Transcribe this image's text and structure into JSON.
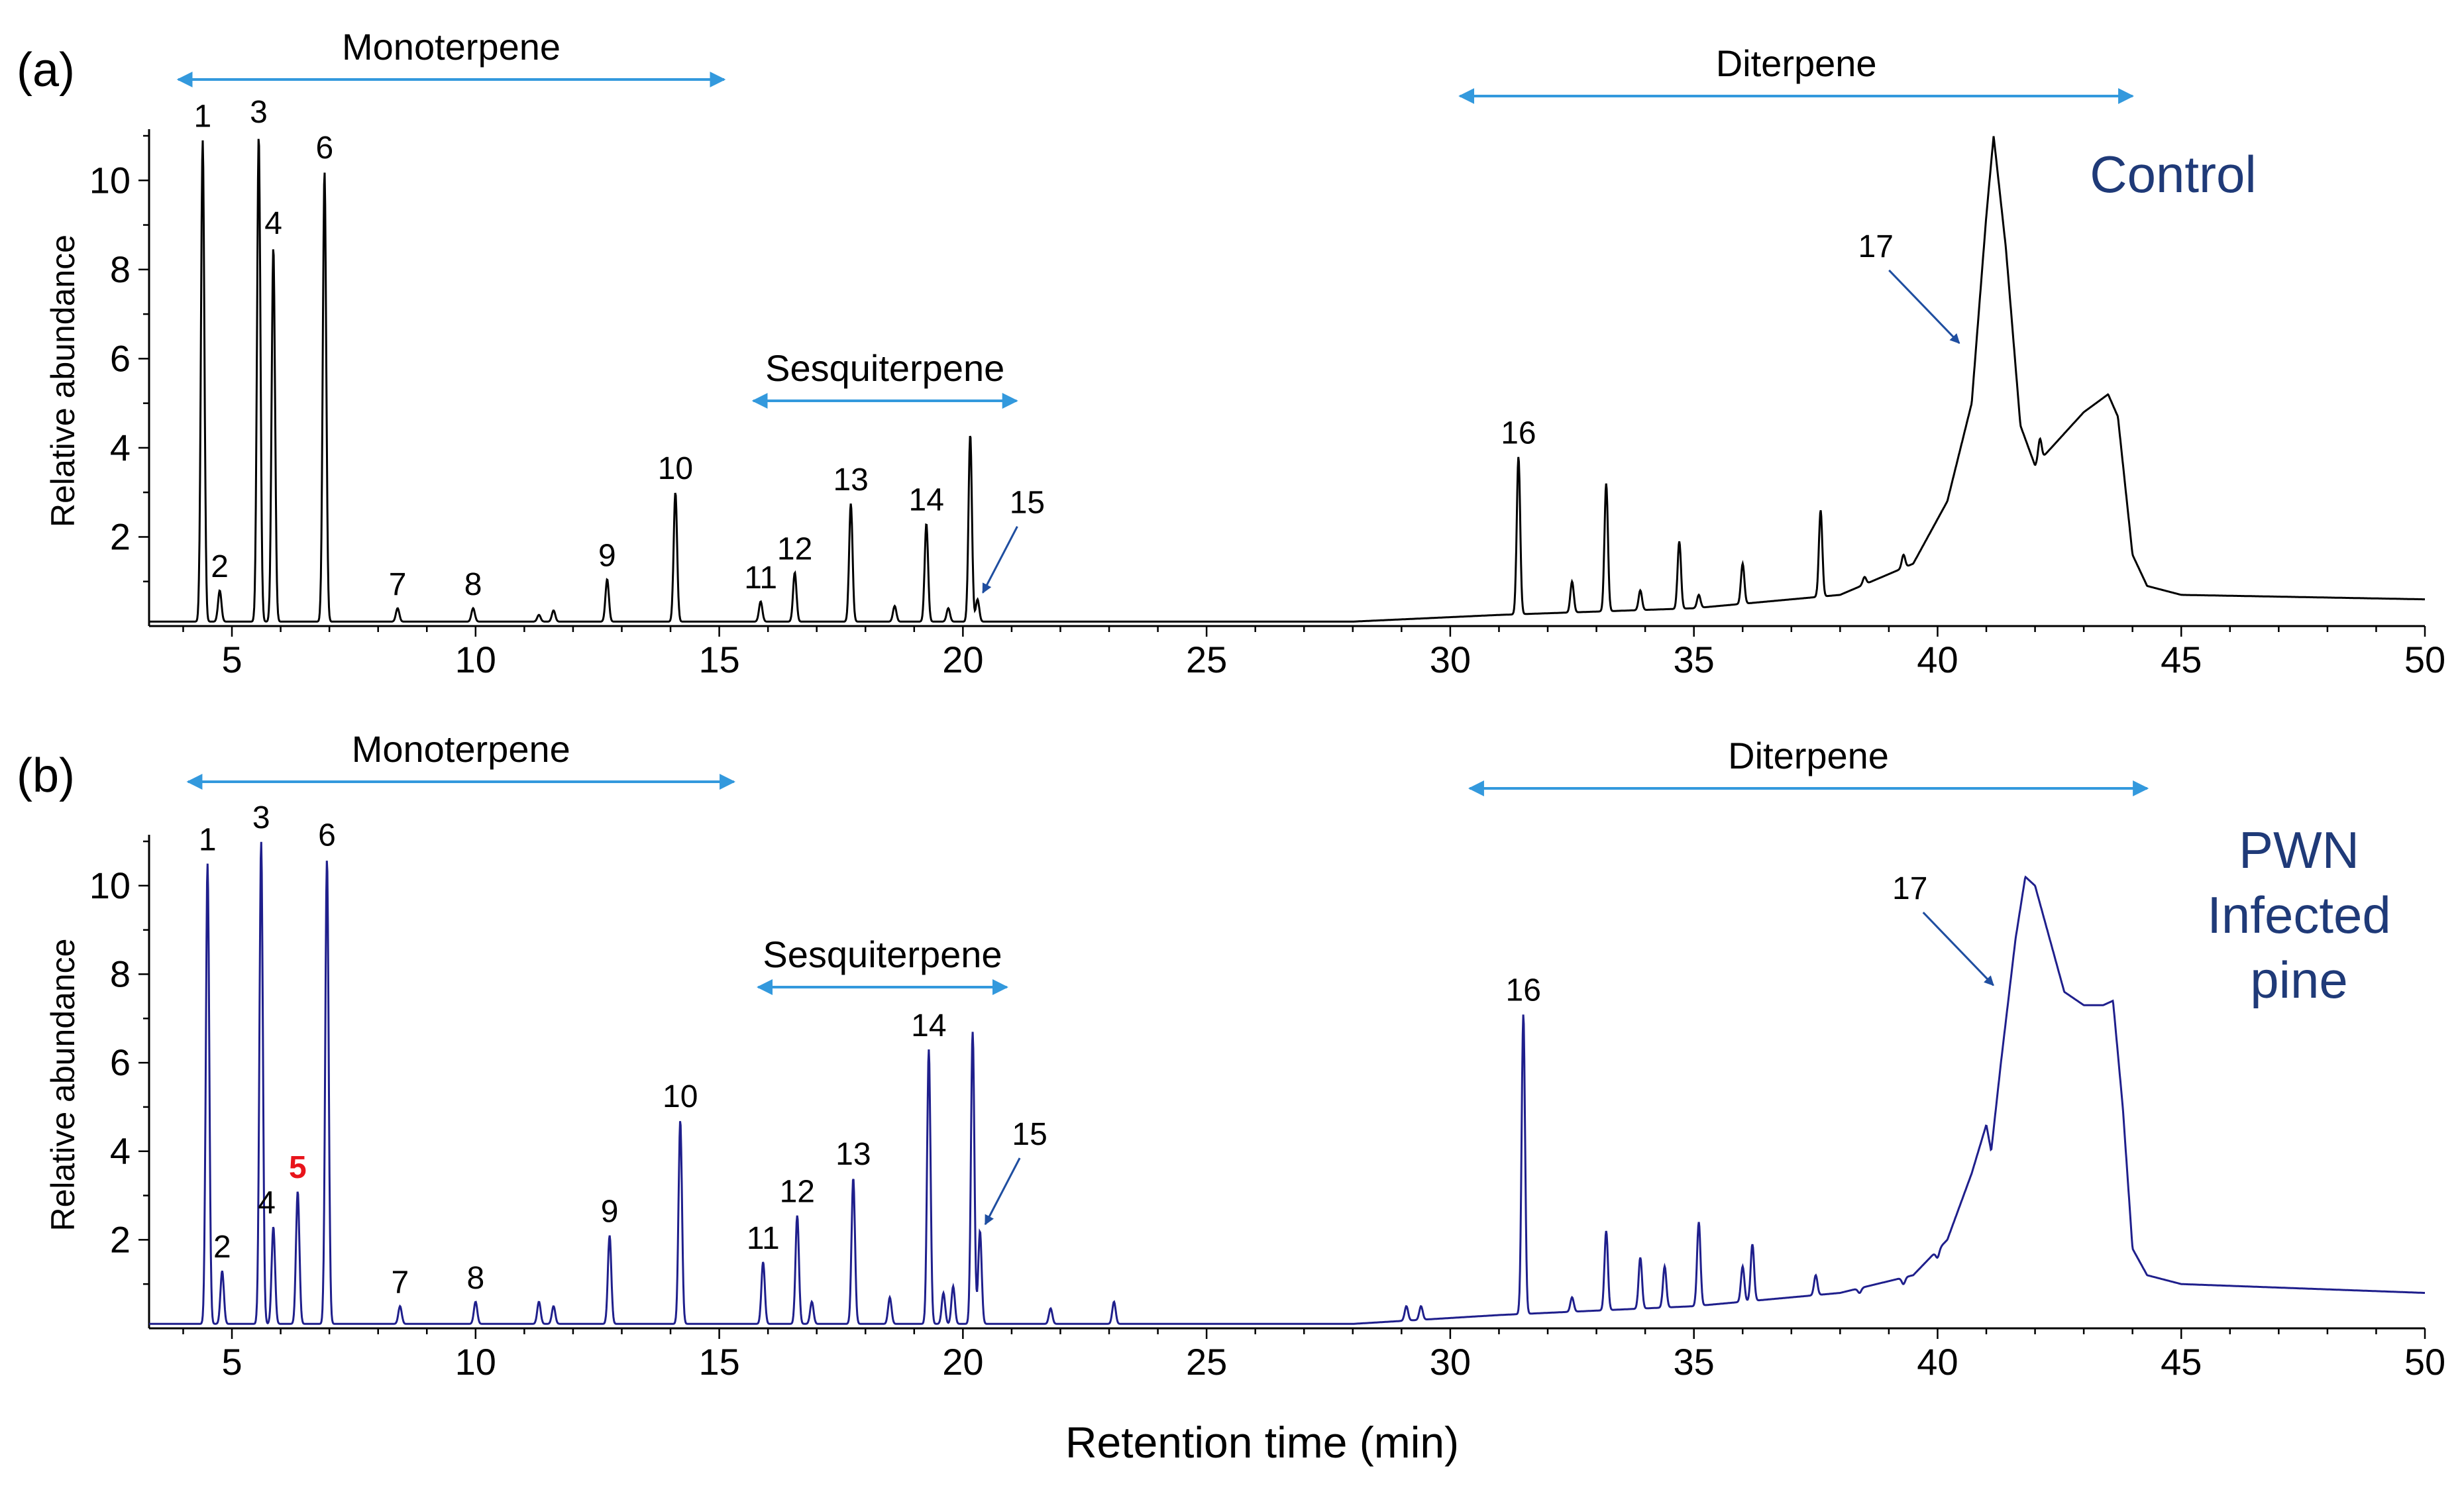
{
  "figure": {
    "xlabel": "Retention time (min)",
    "colors": {
      "control": "#000000",
      "infected": "#1f1f8c",
      "region_arrow": "#3399dd",
      "pointer_arrow": "#1f4ea0",
      "highlight": "#e8141b",
      "sample_text": "#1f3a78"
    }
  },
  "chart_data": [
    {
      "type": "line",
      "panel": "(a)",
      "sample_label": [
        "Control"
      ],
      "xlabel": "Retention time (min)",
      "ylabel": "Relative abundance",
      "xlim": [
        3.3,
        50
      ],
      "ylim": [
        0,
        11
      ],
      "xticks": [
        5,
        10,
        15,
        20,
        25,
        30,
        35,
        40,
        45,
        50
      ],
      "yticks": [
        2,
        4,
        6,
        8,
        10
      ],
      "baseline": [
        [
          3.3,
          0.1
        ],
        [
          28,
          0.1
        ],
        [
          31,
          0.25
        ],
        [
          35,
          0.4
        ],
        [
          38,
          0.7
        ],
        [
          39.5,
          1.4
        ],
        [
          40.2,
          2.8
        ],
        [
          40.7,
          5.0
        ],
        [
          41.0,
          9.2
        ],
        [
          41.15,
          11.0
        ],
        [
          41.4,
          8.5
        ],
        [
          41.7,
          4.5
        ],
        [
          42.0,
          3.6
        ],
        [
          42.5,
          4.2
        ],
        [
          43.0,
          4.8
        ],
        [
          43.5,
          5.2
        ],
        [
          43.7,
          4.7
        ],
        [
          44.0,
          1.6
        ],
        [
          44.3,
          0.9
        ],
        [
          45,
          0.7
        ],
        [
          50,
          0.6
        ]
      ],
      "peaks": [
        {
          "label": "1",
          "x": 4.4,
          "y": 10.9
        },
        {
          "label": "2",
          "x": 4.75,
          "y": 0.8
        },
        {
          "label": "3",
          "x": 5.55,
          "y": 11.0
        },
        {
          "label": "4",
          "x": 5.85,
          "y": 8.5
        },
        {
          "label": "6",
          "x": 6.9,
          "y": 10.2
        },
        {
          "label": "7",
          "x": 8.4,
          "y": 0.4
        },
        {
          "label": "8",
          "x": 9.95,
          "y": 0.4
        },
        {
          "label": "9",
          "x": 12.7,
          "y": 1.05
        },
        {
          "label": "10",
          "x": 14.1,
          "y": 3.0
        },
        {
          "label": "11",
          "x": 15.85,
          "y": 0.55
        },
        {
          "label": "12",
          "x": 16.55,
          "y": 1.2
        },
        {
          "label": "13",
          "x": 17.7,
          "y": 2.75
        },
        {
          "label": "14",
          "x": 19.25,
          "y": 2.3
        },
        {
          "label": "15",
          "x": 20.3,
          "y": 0.6
        },
        {
          "label": "16",
          "x": 31.4,
          "y": 3.8
        },
        {
          "label": "",
          "x": 20.15,
          "y": 4.3
        },
        {
          "label": "",
          "x": 33.2,
          "y": 3.2
        },
        {
          "label": "",
          "x": 34.7,
          "y": 1.9
        },
        {
          "label": "",
          "x": 36.0,
          "y": 1.4
        },
        {
          "label": "",
          "x": 37.6,
          "y": 2.6
        },
        {
          "label": "",
          "x": 32.5,
          "y": 1.0
        },
        {
          "label": "",
          "x": 33.9,
          "y": 0.8
        },
        {
          "label": "",
          "x": 35.1,
          "y": 0.7
        },
        {
          "label": "",
          "x": 38.5,
          "y": 1.1
        },
        {
          "label": "",
          "x": 39.3,
          "y": 1.6
        },
        {
          "label": "",
          "x": 42.1,
          "y": 4.2
        },
        {
          "label": "",
          "x": 11.3,
          "y": 0.25
        },
        {
          "label": "",
          "x": 11.6,
          "y": 0.35
        },
        {
          "label": "",
          "x": 18.6,
          "y": 0.45
        },
        {
          "label": "",
          "x": 19.7,
          "y": 0.4
        }
      ],
      "regions": [
        {
          "name": "Monoterpene",
          "from": 3.9,
          "to": 15.1
        },
        {
          "name": "Sesquiterpene",
          "from": 15.7,
          "to": 21.1
        },
        {
          "name": "Diterpene",
          "from": 30.2,
          "to": 44.0
        }
      ],
      "annotations": [
        {
          "label": "15",
          "x": 20.3,
          "y": 0.6
        },
        {
          "label": "17",
          "x": 40.5,
          "y": 6.2
        }
      ]
    },
    {
      "type": "line",
      "panel": "(b)",
      "sample_label": [
        "PWN",
        "Infected",
        "pine"
      ],
      "xlabel": "Retention time (min)",
      "ylabel": "Relative abundance",
      "xlim": [
        3.3,
        50
      ],
      "ylim": [
        0,
        11
      ],
      "xticks": [
        5,
        10,
        15,
        20,
        25,
        30,
        35,
        40,
        45,
        50
      ],
      "yticks": [
        2,
        4,
        6,
        8,
        10
      ],
      "baseline": [
        [
          3.3,
          0.1
        ],
        [
          28,
          0.1
        ],
        [
          31,
          0.3
        ],
        [
          35,
          0.5
        ],
        [
          38,
          0.8
        ],
        [
          39.5,
          1.2
        ],
        [
          40.2,
          2.0
        ],
        [
          40.7,
          3.5
        ],
        [
          41.0,
          4.6
        ],
        [
          41.1,
          4.0
        ],
        [
          41.3,
          6.0
        ],
        [
          41.6,
          8.8
        ],
        [
          41.8,
          10.2
        ],
        [
          42.0,
          10.0
        ],
        [
          42.3,
          8.8
        ],
        [
          42.6,
          7.6
        ],
        [
          43.0,
          7.3
        ],
        [
          43.4,
          7.3
        ],
        [
          43.6,
          7.4
        ],
        [
          43.8,
          5.0
        ],
        [
          44.0,
          1.8
        ],
        [
          44.3,
          1.2
        ],
        [
          45,
          1.0
        ],
        [
          50,
          0.8
        ]
      ],
      "peaks": [
        {
          "label": "1",
          "x": 4.5,
          "y": 10.5
        },
        {
          "label": "2",
          "x": 4.8,
          "y": 1.3
        },
        {
          "label": "3",
          "x": 5.6,
          "y": 11.0
        },
        {
          "label": "4",
          "x": 5.85,
          "y": 2.3
        },
        {
          "label": "5",
          "x": 6.35,
          "y": 3.1
        },
        {
          "label": "6",
          "x": 6.95,
          "y": 10.6
        },
        {
          "label": "7",
          "x": 8.45,
          "y": 0.5
        },
        {
          "label": "8",
          "x": 10.0,
          "y": 0.6
        },
        {
          "label": "9",
          "x": 12.75,
          "y": 2.1
        },
        {
          "label": "10",
          "x": 14.2,
          "y": 4.7
        },
        {
          "label": "11",
          "x": 15.9,
          "y": 1.5
        },
        {
          "label": "12",
          "x": 16.6,
          "y": 2.55
        },
        {
          "label": "13",
          "x": 17.75,
          "y": 3.4
        },
        {
          "label": "14",
          "x": 19.3,
          "y": 6.3
        },
        {
          "label": "15",
          "x": 20.35,
          "y": 2.2
        },
        {
          "label": "16",
          "x": 31.5,
          "y": 7.1
        },
        {
          "label": "",
          "x": 20.2,
          "y": 6.7
        },
        {
          "label": "",
          "x": 33.2,
          "y": 2.2
        },
        {
          "label": "",
          "x": 33.9,
          "y": 1.6
        },
        {
          "label": "",
          "x": 34.4,
          "y": 1.4
        },
        {
          "label": "",
          "x": 35.1,
          "y": 2.4
        },
        {
          "label": "",
          "x": 36.2,
          "y": 1.9
        },
        {
          "label": "",
          "x": 36.0,
          "y": 1.4
        },
        {
          "label": "",
          "x": 37.5,
          "y": 1.2
        },
        {
          "label": "",
          "x": 38.4,
          "y": 0.8
        },
        {
          "label": "",
          "x": 39.3,
          "y": 1.0
        },
        {
          "label": "",
          "x": 40.0,
          "y": 1.6
        },
        {
          "label": "",
          "x": 11.3,
          "y": 0.6
        },
        {
          "label": "",
          "x": 11.6,
          "y": 0.5
        },
        {
          "label": "",
          "x": 18.5,
          "y": 0.7
        },
        {
          "label": "",
          "x": 19.6,
          "y": 0.8
        },
        {
          "label": "",
          "x": 19.8,
          "y": 0.95
        },
        {
          "label": "",
          "x": 16.9,
          "y": 0.6
        },
        {
          "label": "",
          "x": 21.8,
          "y": 0.45
        },
        {
          "label": "",
          "x": 23.1,
          "y": 0.6
        },
        {
          "label": "",
          "x": 29.1,
          "y": 0.5
        },
        {
          "label": "",
          "x": 29.4,
          "y": 0.5
        },
        {
          "label": "",
          "x": 32.5,
          "y": 0.7
        }
      ],
      "regions": [
        {
          "name": "Monoterpene",
          "from": 4.1,
          "to": 15.3
        },
        {
          "name": "Sesquiterpene",
          "from": 15.8,
          "to": 20.9
        },
        {
          "name": "Diterpene",
          "from": 30.4,
          "to": 44.3
        }
      ],
      "annotations": [
        {
          "label": "15",
          "x": 20.35,
          "y": 2.2
        },
        {
          "label": "17",
          "x": 41.2,
          "y": 7.6
        }
      ]
    }
  ]
}
